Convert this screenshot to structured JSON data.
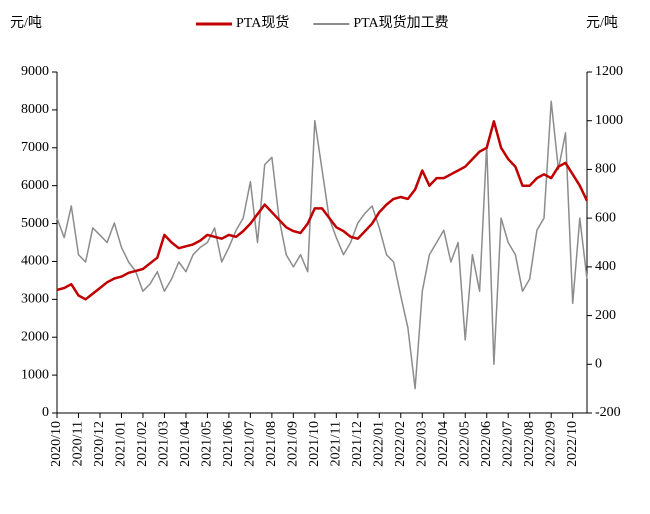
{
  "chart_data": {
    "type": "line",
    "y_label": "元/吨",
    "y2_label": "元/吨",
    "legend": "top",
    "categories": [
      "2020/10",
      null,
      null,
      "2020/11",
      null,
      null,
      "2020/12",
      null,
      null,
      "2021/01",
      null,
      null,
      "2021/02",
      null,
      null,
      "2021/03",
      null,
      null,
      "2021/04",
      null,
      null,
      "2021/05",
      null,
      null,
      "2021/06",
      null,
      null,
      "2021/07",
      null,
      null,
      "2021/08",
      null,
      null,
      "2021/09",
      null,
      null,
      "2021/10",
      null,
      null,
      "2021/11",
      null,
      null,
      "2021/12",
      null,
      null,
      "2022/01",
      null,
      null,
      "2022/02",
      null,
      null,
      "2022/03",
      null,
      null,
      "2022/04",
      null,
      null,
      "2022/05",
      null,
      null,
      "2022/06",
      null,
      null,
      "2022/07",
      null,
      null,
      "2022/08",
      null,
      null,
      "2022/09",
      null,
      null,
      "2022/10",
      null,
      null
    ],
    "series": [
      {
        "name": "PTA现货",
        "color": "#c00000",
        "axis": "y",
        "width": 2.5,
        "values": [
          3250,
          3300,
          3400,
          3100,
          3000,
          3150,
          3300,
          3450,
          3550,
          3600,
          3700,
          3750,
          3800,
          3950,
          4100,
          4700,
          4500,
          4350,
          4400,
          4450,
          4550,
          4700,
          4650,
          4600,
          4700,
          4650,
          4800,
          5000,
          5250,
          5500,
          5300,
          5100,
          4900,
          4800,
          4750,
          5000,
          5400,
          5400,
          5150,
          4900,
          4800,
          4650,
          4600,
          4800,
          5000,
          5300,
          5500,
          5650,
          5700,
          5650,
          5900,
          6400,
          6000,
          6200,
          6200,
          6300,
          6400,
          6500,
          6700,
          6900,
          7000,
          7700,
          7000,
          6700,
          6500,
          6000,
          6000,
          6200,
          6300,
          6200,
          6500,
          6600,
          6300,
          6000,
          5600
        ]
      },
      {
        "name": "PTA现货加工费",
        "color": "#8c8c8c",
        "axis": "y2",
        "width": 1.5,
        "values": [
          600,
          520,
          650,
          450,
          420,
          560,
          530,
          500,
          580,
          480,
          420,
          380,
          300,
          330,
          380,
          300,
          350,
          420,
          380,
          450,
          480,
          500,
          560,
          420,
          480,
          550,
          600,
          750,
          500,
          820,
          850,
          600,
          450,
          400,
          450,
          380,
          1000,
          800,
          600,
          520,
          450,
          500,
          580,
          620,
          650,
          560,
          450,
          420,
          280,
          150,
          -100,
          300,
          450,
          500,
          550,
          420,
          500,
          100,
          450,
          300,
          900,
          0,
          600,
          500,
          450,
          300,
          350,
          550,
          600,
          1080,
          800,
          950,
          250,
          600,
          350
        ]
      }
    ],
    "ylim": [
      0,
      9000
    ],
    "yticks": [
      0,
      1000,
      2000,
      3000,
      4000,
      5000,
      6000,
      7000,
      8000,
      9000
    ],
    "y2lim": [
      -200,
      1200
    ],
    "y2ticks": [
      -200,
      0,
      200,
      400,
      600,
      800,
      1000,
      1200
    ]
  }
}
